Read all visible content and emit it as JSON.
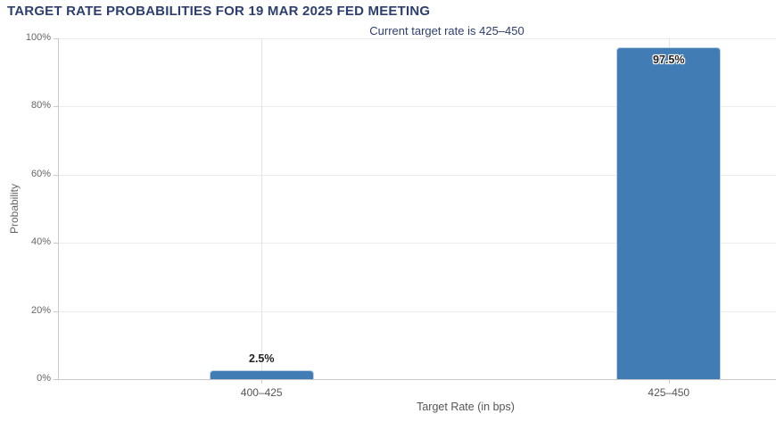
{
  "chart_data": {
    "type": "bar",
    "title": "TARGET RATE PROBABILITIES FOR 19 MAR 2025 FED MEETING",
    "subtitle": "Current target rate is 425–450",
    "xlabel": "Target Rate (in bps)",
    "ylabel": "Probability",
    "categories": [
      "400–425",
      "425–450"
    ],
    "values": [
      2.5,
      97.5
    ],
    "value_labels": [
      "2.5%",
      "97.5%"
    ],
    "ylim": [
      0,
      100
    ],
    "ytick_step": 20,
    "ytick_labels": [
      "0%",
      "20%",
      "40%",
      "60%",
      "80%",
      "100%"
    ],
    "grid": true,
    "legend_position": "none",
    "colors": {
      "bar": "#427CB5",
      "title_text": "#2D3F6F",
      "axis_text": "#666666",
      "gridline": "#ECECEC",
      "vertical_gridline": "#E3E3E3",
      "axis_line": "#C9C9C9"
    }
  }
}
